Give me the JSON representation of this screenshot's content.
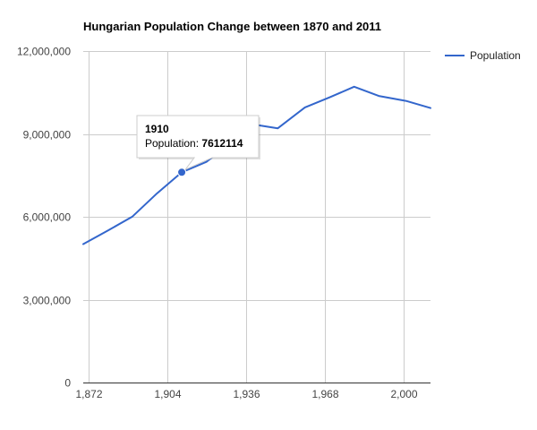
{
  "chart_data": {
    "type": "line",
    "title": "Hungarian Population Change between 1870 and 2011",
    "xlabel": "",
    "ylabel": "",
    "x": [
      1870,
      1880,
      1890,
      1900,
      1910,
      1920,
      1930,
      1941,
      1949,
      1960,
      1970,
      1980,
      1990,
      2001,
      2011
    ],
    "series": [
      {
        "name": "Population",
        "color": "#3366cc",
        "values": [
          5011000,
          5500000,
          6009000,
          6854000,
          7612114,
          7987000,
          8685000,
          9316000,
          9205000,
          9961000,
          10322000,
          10709000,
          10375000,
          10198000,
          9938000
        ]
      }
    ],
    "xlim": [
      1870,
      2011
    ],
    "ylim": [
      0,
      12000000
    ],
    "x_ticks": [
      1872,
      1904,
      1936,
      1968,
      2000
    ],
    "x_tick_labels": [
      "1,872",
      "1,904",
      "1,936",
      "1,968",
      "2,000"
    ],
    "y_ticks": [
      0,
      3000000,
      6000000,
      9000000,
      12000000
    ],
    "y_tick_labels": [
      "0",
      "3,000,000",
      "6,000,000",
      "9,000,000",
      "12,000,000"
    ],
    "grid": true,
    "legend": "right",
    "tooltip": {
      "x": 1910,
      "title": "1910",
      "label": "Population: ",
      "value": "7612114"
    }
  }
}
